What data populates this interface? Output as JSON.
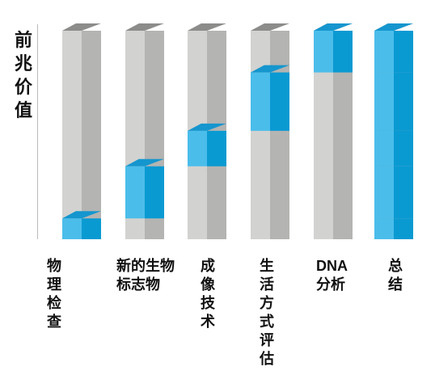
{
  "chart_data": {
    "type": "bar",
    "ylabel": "前兆价值",
    "categories": [
      "物理检查",
      "新的生物标志物",
      "成像技术",
      "生活方式评估",
      "DNA分析",
      "总结"
    ],
    "segments": [
      [
        {
          "start": 0,
          "end": 10
        }
      ],
      [
        {
          "start": 10,
          "end": 35
        }
      ],
      [
        {
          "start": 35,
          "end": 52
        }
      ],
      [
        {
          "start": 52,
          "end": 80
        }
      ],
      [
        {
          "start": 80,
          "end": 100
        }
      ],
      [
        {
          "start": 0,
          "end": 10
        },
        {
          "start": 10,
          "end": 35
        },
        {
          "start": 35,
          "end": 52
        },
        {
          "start": 52,
          "end": 80
        },
        {
          "start": 80,
          "end": 100
        }
      ]
    ],
    "ylim": [
      0,
      100
    ],
    "grid": false,
    "colors": {
      "column_front": "#d2d2d0",
      "column_side": "#b4b4b2",
      "column_top": "#8c8c8a",
      "segment_front": "#4bbdea",
      "segment_side": "#0a9ad2",
      "segment_top": "#1596ce"
    }
  },
  "labels": {
    "ylabel_chars": [
      "前",
      "兆",
      "价",
      "值"
    ],
    "categories": [
      {
        "lines": [
          "物",
          "理",
          "检",
          "查"
        ]
      },
      {
        "lines": [
          "新的生物",
          "标志物"
        ]
      },
      {
        "lines": [
          "成",
          "像",
          "技",
          "术"
        ]
      },
      {
        "lines": [
          "生",
          "活",
          "方",
          "式",
          "评",
          "估"
        ]
      },
      {
        "lines": [
          "DNA",
          "分析"
        ]
      },
      {
        "lines": [
          "总",
          "结"
        ]
      }
    ]
  }
}
